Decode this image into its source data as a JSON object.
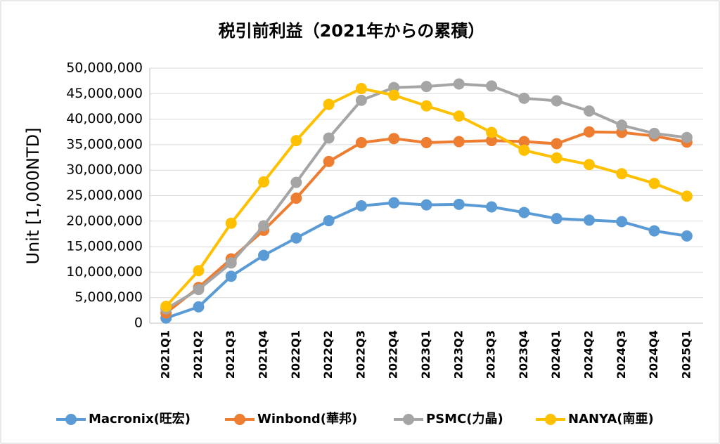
{
  "chart_data": {
    "type": "line",
    "title": "税引前利益（2021年からの累積）",
    "y_label": "Unit [1,000NTD]",
    "categories": [
      "2021Q1",
      "2021Q2",
      "2021Q3",
      "2021Q4",
      "2022Q1",
      "2022Q2",
      "2022Q3",
      "2022Q4",
      "2023Q1",
      "2023Q2",
      "2023Q3",
      "2023Q4",
      "2024Q1",
      "2024Q2",
      "2024Q3",
      "2024Q4",
      "2025Q1"
    ],
    "series": [
      {
        "name": "Macronix(旺宏)",
        "color": "#5b9bd5",
        "values": [
          1000000,
          3200000,
          9200000,
          13300000,
          16700000,
          20100000,
          23000000,
          23600000,
          23200000,
          23300000,
          22800000,
          21700000,
          20500000,
          20200000,
          19900000,
          18100000,
          17100000
        ]
      },
      {
        "name": "Winbond(華邦)",
        "color": "#ed7d31",
        "values": [
          2000000,
          7000000,
          12600000,
          18200000,
          24500000,
          31700000,
          35400000,
          36200000,
          35400000,
          35600000,
          35800000,
          35600000,
          35200000,
          37500000,
          37400000,
          36700000,
          35500000
        ]
      },
      {
        "name": "PSMC(力晶)",
        "color": "#a5a5a5",
        "values": [
          2800000,
          6600000,
          11800000,
          19100000,
          27600000,
          36300000,
          43700000,
          46200000,
          46400000,
          46900000,
          46500000,
          44100000,
          43600000,
          41600000,
          38800000,
          37200000,
          36400000
        ]
      },
      {
        "name": "NANYA(南亜)",
        "color": "#ffc000",
        "values": [
          3300000,
          10300000,
          19600000,
          27700000,
          35800000,
          42900000,
          46000000,
          44700000,
          42600000,
          40600000,
          37400000,
          33900000,
          32400000,
          31100000,
          29300000,
          27400000,
          24900000
        ]
      }
    ],
    "ylim": [
      0,
      50000000
    ],
    "yticks": [
      0,
      {
        "value": 5000000,
        "label": "5,000,000"
      },
      {
        "value": 10000000,
        "label": "10,000,000"
      },
      {
        "value": 15000000,
        "label": "15,000,000"
      },
      {
        "value": 20000000,
        "label": "20,000,000"
      },
      {
        "value": 25000000,
        "label": "25,000,000"
      },
      {
        "value": 30000000,
        "label": "30,000,000"
      },
      {
        "value": 35000000,
        "label": "35,000,000"
      },
      {
        "value": 40000000,
        "label": "40,000,000"
      },
      {
        "value": 45000000,
        "label": "45,000,000"
      },
      {
        "value": 50000000,
        "label": "50,000,000"
      }
    ],
    "grid": true,
    "legend": "bottom"
  }
}
